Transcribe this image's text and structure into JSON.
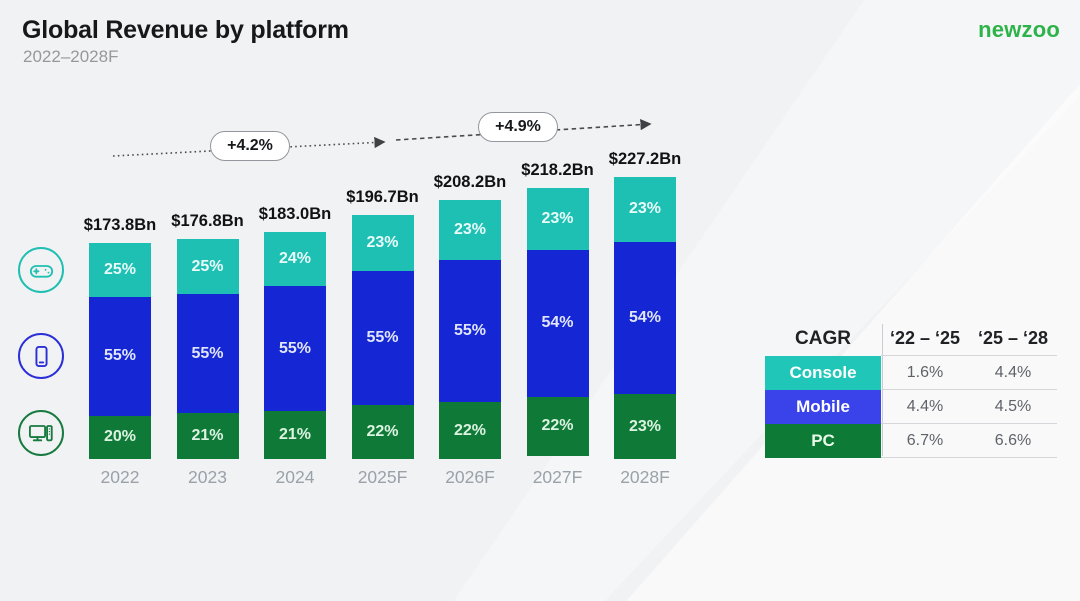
{
  "header": {
    "title": "Global Revenue by platform",
    "subtitle": "2022–2028F",
    "logo": "newzoo"
  },
  "chart_data": {
    "type": "bar",
    "stacked": true,
    "title": "Global Revenue by platform",
    "subtitle": "2022–2028F",
    "unit": "USD billions",
    "categories": [
      "2022",
      "2023",
      "2024",
      "2025F",
      "2026F",
      "2027F",
      "2028F"
    ],
    "totals_bn": [
      173.8,
      176.8,
      183.0,
      196.7,
      208.2,
      218.2,
      227.2
    ],
    "total_labels": [
      "$173.8Bn",
      "$176.8Bn",
      "$183.0Bn",
      "$196.7Bn",
      "$208.2Bn",
      "$218.2Bn",
      "$227.2Bn"
    ],
    "series": [
      {
        "name": "PC",
        "color": "#0f7a38",
        "values_pct": [
          20,
          21,
          21,
          22,
          22,
          22,
          23
        ]
      },
      {
        "name": "Mobile",
        "color": "#1527d4",
        "values_pct": [
          55,
          55,
          55,
          55,
          55,
          54,
          54
        ]
      },
      {
        "name": "Console",
        "color": "#1fc0b4",
        "values_pct": [
          25,
          25,
          24,
          23,
          23,
          23,
          23
        ]
      }
    ],
    "annotations": [
      {
        "label": "+4.2%",
        "span": "2022 to 2025F"
      },
      {
        "label": "+4.9%",
        "span": "2025F to 2028F"
      }
    ],
    "legend_position": "left-icons",
    "grid": false
  },
  "platform_icons": [
    {
      "platform": "Console",
      "icon": "gamepad-icon",
      "color": "#1fbfb2"
    },
    {
      "platform": "Mobile",
      "icon": "smartphone-icon",
      "color": "#2b2fd6"
    },
    {
      "platform": "PC",
      "icon": "desktop-pc-icon",
      "color": "#177a3f"
    }
  ],
  "table": {
    "header": [
      "CAGR",
      "‘22 – ‘25",
      "‘25 – ‘28"
    ],
    "rows": [
      {
        "label": "Console",
        "color": "#20c7b9",
        "text": "#ffffff",
        "values": [
          "1.6%",
          "4.4%"
        ]
      },
      {
        "label": "Mobile",
        "color": "#3a43ea",
        "text": "#ffffff",
        "values": [
          "4.4%",
          "4.5%"
        ]
      },
      {
        "label": "PC",
        "color": "#0d7a35",
        "text": "#e9fbe9",
        "values": [
          "6.7%",
          "6.6%"
        ]
      }
    ]
  }
}
